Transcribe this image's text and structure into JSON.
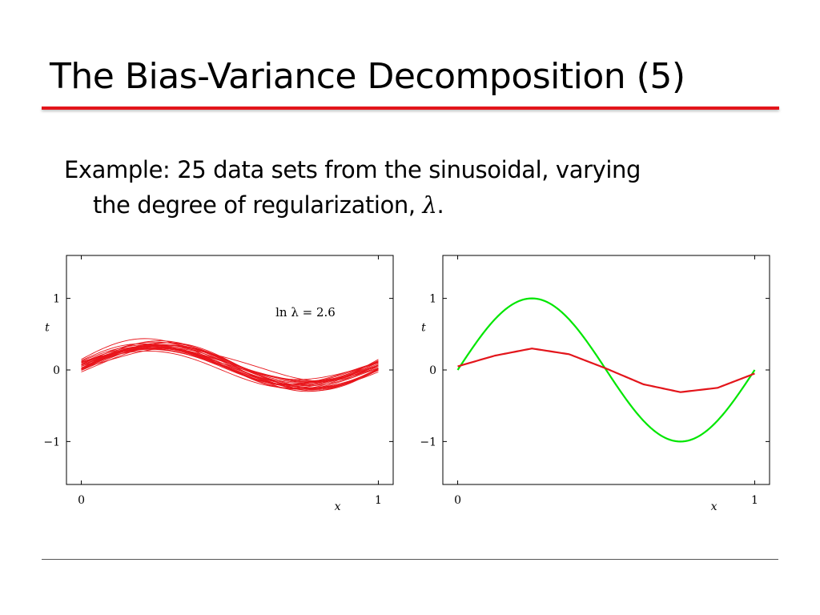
{
  "slide": {
    "title": "The Bias-Variance Decomposition (5)",
    "bullet_line1": "Example: 25 data sets from the sinusoidal, varying",
    "bullet_line2_prefix": "the degree of regularization, ",
    "bullet_lambda": "λ",
    "bullet_line2_suffix": "."
  },
  "colors": {
    "rule": "#e3151b",
    "fits": "#e8151b",
    "truth": "#00e600"
  },
  "chart_data": [
    {
      "type": "line",
      "annotation": "ln λ = 2.6",
      "xlabel": "x",
      "ylabel": "t",
      "xlim": [
        -0.05,
        1.05
      ],
      "ylim": [
        -1.6,
        1.6
      ],
      "x_ticks": [
        0,
        1
      ],
      "x_tick_labels": [
        "0",
        "1"
      ],
      "y_ticks": [
        -1,
        0,
        1
      ],
      "y_tick_labels": [
        "−1",
        "0",
        "1"
      ],
      "grid": false,
      "n_series": 25,
      "amplitude_range": [
        0.22,
        0.36
      ],
      "series_style": "thin red lines",
      "x": [
        0,
        0.1,
        0.2,
        0.3,
        0.4,
        0.5,
        0.6,
        0.7,
        0.8,
        0.9,
        1.0
      ],
      "mean_y": [
        0.05,
        0.18,
        0.28,
        0.3,
        0.17,
        -0.02,
        -0.2,
        -0.31,
        -0.33,
        -0.24,
        -0.05
      ]
    },
    {
      "type": "line",
      "xlabel": "x",
      "ylabel": "t",
      "xlim": [
        -0.05,
        1.05
      ],
      "ylim": [
        -1.6,
        1.6
      ],
      "x_ticks": [
        0,
        1
      ],
      "x_tick_labels": [
        "0",
        "1"
      ],
      "y_ticks": [
        -1,
        0,
        1
      ],
      "y_tick_labels": [
        "−1",
        "0",
        "1"
      ],
      "grid": false,
      "series": [
        {
          "name": "",
          "role": "true function sin(2πx)",
          "color": "#00e600",
          "x": [
            0,
            0.125,
            0.25,
            0.375,
            0.5,
            0.625,
            0.75,
            0.875,
            1.0
          ],
          "values": [
            0,
            0.71,
            1.0,
            0.71,
            0,
            -0.71,
            -1.0,
            -0.71,
            0
          ]
        },
        {
          "name": "",
          "role": "average fit",
          "color": "#e3151b",
          "x": [
            0,
            0.125,
            0.25,
            0.375,
            0.5,
            0.625,
            0.75,
            0.875,
            1.0
          ],
          "values": [
            0.05,
            0.2,
            0.3,
            0.22,
            0.02,
            -0.2,
            -0.31,
            -0.25,
            -0.05
          ]
        }
      ]
    }
  ]
}
